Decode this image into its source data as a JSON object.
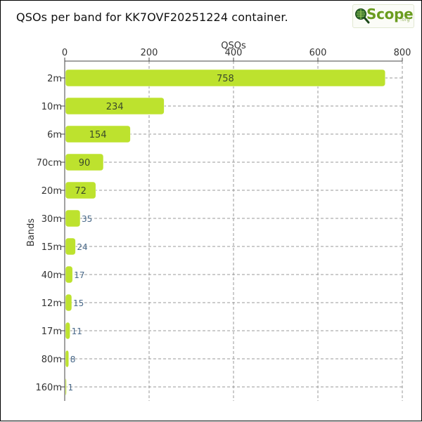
{
  "title": "QSOs per band for KK7OVF20251224 container.",
  "logo": {
    "text": "Scope",
    "suffix": ".org",
    "icon": "qscope-magnifier-icon"
  },
  "colors": {
    "bar": "#bde22e",
    "grid": "#999999",
    "axis": "#444444"
  },
  "chart_data": {
    "type": "bar",
    "orientation": "horizontal",
    "xlabel": "QSOs",
    "ylabel": "Bands",
    "xlim": [
      0,
      800
    ],
    "xticks": [
      0,
      200,
      400,
      600,
      800
    ],
    "x_axis_position": "top",
    "grid": true,
    "categories": [
      "2m",
      "10m",
      "6m",
      "70cm",
      "20m",
      "30m",
      "15m",
      "40m",
      "12m",
      "17m",
      "80m",
      "160m"
    ],
    "values": [
      758,
      234,
      154,
      90,
      72,
      35,
      24,
      17,
      15,
      11,
      8,
      1
    ]
  }
}
